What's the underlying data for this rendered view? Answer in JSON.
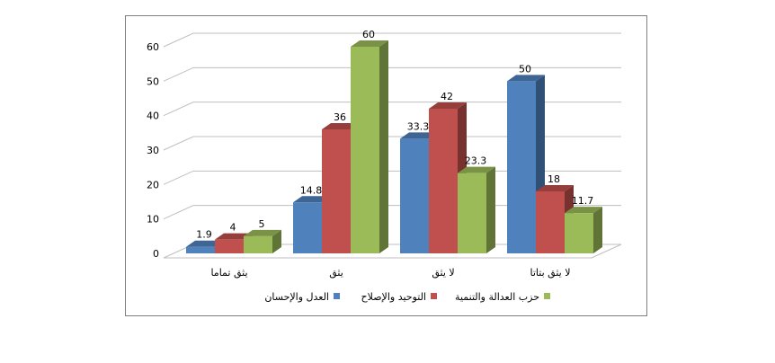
{
  "chart_data": {
    "type": "bar",
    "three_d": true,
    "categories": [
      "يثق تماما",
      "يثق",
      "لا يثق",
      "لا يثق بتاتا"
    ],
    "series": [
      {
        "name": "العدل والإحسان",
        "color": "#4f81bd",
        "values": [
          1.9,
          14.8,
          33.3,
          50
        ]
      },
      {
        "name": "التوحيد والإصلاح",
        "color": "#c0504d",
        "values": [
          4,
          36,
          42,
          18
        ]
      },
      {
        "name": "حزب العدالة والتنمية",
        "color": "#9bbb59",
        "values": [
          5,
          60,
          23.3,
          11.7
        ]
      }
    ],
    "data_labels": [
      [
        "1.9",
        "14.8",
        "33.3",
        "50"
      ],
      [
        "4",
        "36",
        "42",
        "18"
      ],
      [
        "5",
        "60",
        "23.3",
        "11.7"
      ]
    ],
    "yticks": [
      "0",
      "10",
      "20",
      "30",
      "40",
      "50",
      "60"
    ],
    "ylim": [
      0,
      60
    ],
    "grid": true,
    "legend_position": "bottom",
    "title": "",
    "xlabel": "",
    "ylabel": ""
  }
}
